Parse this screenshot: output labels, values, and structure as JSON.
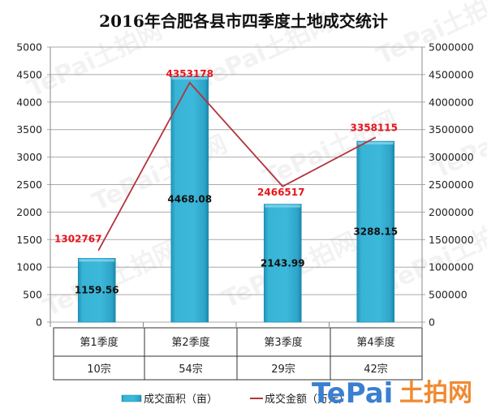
{
  "watermark": {
    "text": "TePai土拍网"
  },
  "logo": {
    "en": "TePai",
    "cn": "土拍网"
  },
  "legend": {
    "bar_label": "成交面积（亩）",
    "line_label": "成交金额（万元）"
  },
  "table": {
    "headers": [
      "第1季度",
      "第2季度",
      "第3季度",
      "第4季度"
    ],
    "counts": [
      "10宗",
      "54宗",
      "29宗",
      "42宗"
    ]
  },
  "colors": {
    "bar": "#35b0d2",
    "bar_dark": "#1b8bb0",
    "bar_light": "#86d6ec",
    "line": "#b2343c",
    "line_label": "#e8141c",
    "grid": "#a9a9a9"
  },
  "chart_data": {
    "type": "bar",
    "title": "2016年合肥各县市四季度土地成交统计",
    "categories": [
      "第1季度",
      "第2季度",
      "第3季度",
      "第4季度"
    ],
    "series": [
      {
        "name": "成交面积（亩）",
        "type": "bar",
        "axis": "left",
        "values": [
          1159.56,
          4468.08,
          2143.99,
          3288.15
        ],
        "labels": [
          "1159.56",
          "4468.08",
          "2143.99",
          "3288.15"
        ]
      },
      {
        "name": "成交金额（万元）",
        "type": "line",
        "axis": "right",
        "values": [
          1302767,
          4353178,
          2466517,
          3358115
        ],
        "labels": [
          "1302767",
          "4353178",
          "2466517",
          "3358115"
        ]
      }
    ],
    "transaction_counts": [
      10,
      54,
      29,
      42
    ],
    "xlabel": "",
    "ylabel": "",
    "ylim": [
      0,
      5000
    ],
    "y2lim": [
      0,
      5000000
    ],
    "yticks": [
      "0",
      "500",
      "1000",
      "1500",
      "2000",
      "2500",
      "3000",
      "3500",
      "4000",
      "4500",
      "5000"
    ],
    "y2ticks": [
      "0",
      "500000",
      "1000000",
      "1500000",
      "2000000",
      "2500000",
      "3000000",
      "3500000",
      "4000000",
      "4500000",
      "5000000"
    ],
    "grid": true,
    "legend_position": "bottom"
  }
}
